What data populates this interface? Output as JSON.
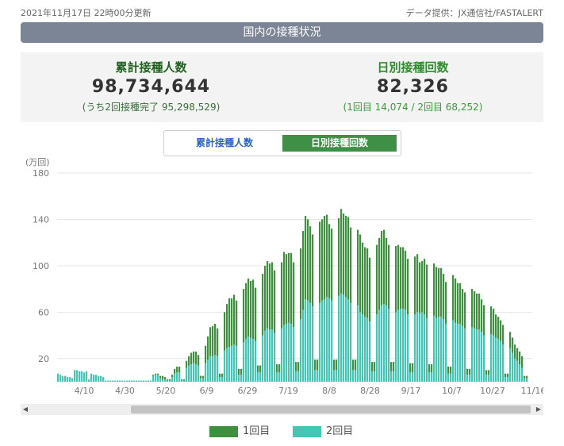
{
  "header": {
    "updated": "2021年11月17日 22時00分更新",
    "source": "データ提供：JX通信社/FASTALERT",
    "title": "国内の接種状況"
  },
  "stats": {
    "cumulative_label": "累計接種人数",
    "cumulative_value": "98,734,644",
    "cumulative_sub": "(うち2回接種完了 95,298,529)",
    "daily_label": "日別接種回数",
    "daily_value": "82,326",
    "daily_sub": "(1回目 14,074 / 2回目 68,252)"
  },
  "toggle": {
    "option1": "累計接種人数",
    "option2": "日別接種回数",
    "active": "option2"
  },
  "legend": {
    "dose1": "1回目",
    "dose2": "2回目"
  },
  "colors": {
    "dose1": "#3e8f3e",
    "dose2": "#44c6b4",
    "banner": "#7b8595",
    "toggle_active": "#3f8f46"
  },
  "icons": {
    "scroll_left": "arrow-left-icon",
    "scroll_right": "arrow-right-icon"
  },
  "chart_data": {
    "type": "bar",
    "stacked": true,
    "ylabel": "(万回)",
    "ylim": [
      0,
      180
    ],
    "yticks": [
      20,
      60,
      100,
      140,
      180
    ],
    "x_tick_labels": [
      "4/10",
      "4/30",
      "5/20",
      "6/9",
      "6/29",
      "7/19",
      "8/8",
      "8/28",
      "9/17",
      "10/7",
      "10/27",
      "11/16"
    ],
    "grid": true,
    "legend_position": "bottom",
    "x_range": [
      "3/31",
      "11/16"
    ],
    "series": [
      {
        "name": "1回目",
        "values": [
          0,
          0,
          0,
          0,
          0,
          0,
          0,
          0,
          0,
          0,
          0,
          0,
          0,
          0,
          0,
          0,
          0,
          0,
          0,
          0,
          0,
          0,
          0,
          0,
          0,
          0,
          0,
          0,
          0,
          0,
          0,
          0,
          0,
          0,
          0,
          0,
          0,
          0,
          0,
          0,
          1,
          1,
          1,
          2,
          3,
          2,
          1,
          1,
          2,
          4,
          5,
          5,
          1,
          1,
          6,
          8,
          10,
          10,
          11,
          9,
          2,
          2,
          15,
          20,
          25,
          26,
          27,
          24,
          3,
          3,
          33,
          38,
          42,
          41,
          43,
          39,
          5,
          5,
          46,
          48,
          50,
          49,
          51,
          46,
          6,
          6,
          53,
          56,
          58,
          57,
          58,
          54,
          7,
          7,
          57,
          63,
          60,
          60,
          61,
          56,
          8,
          8,
          61,
          68,
          72,
          70,
          66,
          62,
          9,
          9,
          70,
          70,
          72,
          71,
          64,
          62,
          9,
          9,
          67,
          73,
          70,
          70,
          71,
          65,
          9,
          9,
          65,
          67,
          62,
          60,
          60,
          55,
          8,
          8,
          60,
          62,
          64,
          64,
          58,
          55,
          8,
          8,
          57,
          56,
          53,
          53,
          51,
          48,
          8,
          8,
          50,
          50,
          44,
          44,
          48,
          46,
          7,
          7,
          45,
          44,
          42,
          42,
          39,
          36,
          6,
          6,
          39,
          38,
          35,
          35,
          32,
          31,
          5,
          5,
          33,
          32,
          31,
          31,
          28,
          26,
          4,
          4,
          24,
          23,
          20,
          19,
          18,
          17,
          3,
          3,
          14,
          13,
          12,
          11,
          11,
          10,
          2,
          2
        ]
      },
      {
        "name": "2回目",
        "values": [
          7,
          6,
          5,
          5,
          4,
          4,
          3,
          10,
          10,
          9,
          9,
          8,
          9,
          2,
          7,
          6,
          6,
          5,
          5,
          4,
          1,
          1,
          1,
          1,
          1,
          1,
          1,
          1,
          1,
          1,
          1,
          1,
          1,
          1,
          1,
          1,
          1,
          1,
          1,
          1,
          5,
          6,
          6,
          3,
          2,
          2,
          1,
          1,
          4,
          7,
          8,
          8,
          1,
          1,
          12,
          14,
          15,
          16,
          15,
          14,
          3,
          3,
          16,
          19,
          22,
          22,
          23,
          22,
          4,
          4,
          27,
          29,
          30,
          31,
          32,
          31,
          6,
          6,
          34,
          37,
          39,
          38,
          37,
          35,
          8,
          8,
          40,
          44,
          46,
          45,
          45,
          42,
          8,
          8,
          46,
          49,
          50,
          51,
          50,
          47,
          9,
          9,
          54,
          62,
          71,
          70,
          68,
          65,
          10,
          10,
          68,
          70,
          71,
          73,
          72,
          70,
          10,
          10,
          74,
          76,
          75,
          73,
          71,
          68,
          10,
          10,
          66,
          60,
          58,
          56,
          55,
          52,
          9,
          9,
          58,
          62,
          66,
          67,
          66,
          63,
          9,
          9,
          60,
          62,
          63,
          63,
          62,
          58,
          8,
          8,
          58,
          60,
          59,
          60,
          58,
          55,
          8,
          8,
          57,
          55,
          56,
          56,
          54,
          50,
          7,
          7,
          53,
          51,
          50,
          50,
          48,
          46,
          6,
          6,
          47,
          46,
          45,
          45,
          43,
          40,
          6,
          6,
          41,
          40,
          38,
          37,
          35,
          32,
          4,
          4,
          29,
          25,
          20,
          18,
          15,
          12,
          3,
          3,
          10,
          9,
          8,
          7,
          6,
          5,
          2,
          2
        ]
      }
    ]
  }
}
